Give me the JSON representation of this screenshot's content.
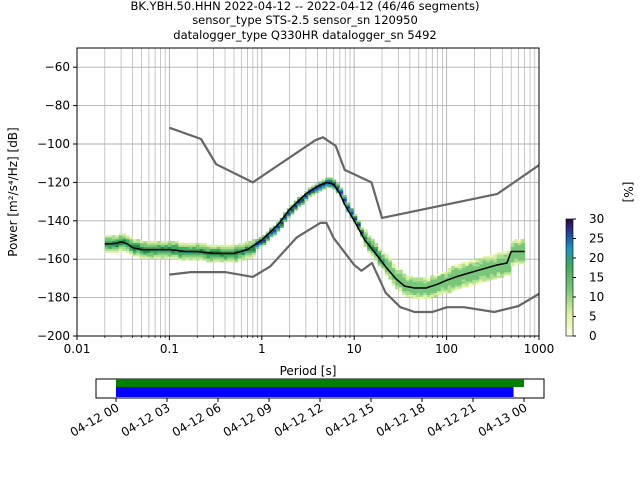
{
  "header": {
    "line1": "BK.YBH.50.HHN   2022-04-12 -- 2022-04-12  (46/46 segments)",
    "line2": "sensor_type STS-2.5 sensor_sn 120950",
    "line3": "datalogger_type Q330HR datalogger_sn 5492"
  },
  "chart_data": {
    "type": "heatmap",
    "xlabel": "Period [s]",
    "ylabel": "Power [m²/s⁴/Hz] [dB]",
    "x_scale": "log",
    "xlim": [
      0.01,
      1000
    ],
    "ylim": [
      -200,
      -50
    ],
    "x_ticks": [
      {
        "value": 0.01,
        "label": "0.01"
      },
      {
        "value": 0.1,
        "label": "0.1"
      },
      {
        "value": 1,
        "label": "1"
      },
      {
        "value": 10,
        "label": "10"
      },
      {
        "value": 100,
        "label": "100"
      },
      {
        "value": 1000,
        "label": "1000"
      }
    ],
    "y_ticks": [
      {
        "value": -60,
        "label": "−60"
      },
      {
        "value": -80,
        "label": "−80"
      },
      {
        "value": -100,
        "label": "−100"
      },
      {
        "value": -120,
        "label": "−120"
      },
      {
        "value": -140,
        "label": "−140"
      },
      {
        "value": -160,
        "label": "−160"
      },
      {
        "value": -180,
        "label": "−180"
      },
      {
        "value": -200,
        "label": "−200"
      }
    ],
    "grid": true,
    "colorbar": {
      "label": "[%]",
      "range": [
        0,
        30
      ],
      "ticks": [
        {
          "value": 0,
          "label": "0"
        },
        {
          "value": 5,
          "label": "5"
        },
        {
          "value": 10,
          "label": "10"
        },
        {
          "value": 15,
          "label": "15"
        },
        {
          "value": 20,
          "label": "20"
        },
        {
          "value": 25,
          "label": "25"
        },
        {
          "value": 30,
          "label": "30"
        }
      ]
    },
    "mean_curve": [
      [
        0.02,
        -152
      ],
      [
        0.025,
        -152
      ],
      [
        0.03,
        -151
      ],
      [
        0.035,
        -152
      ],
      [
        0.04,
        -154
      ],
      [
        0.05,
        -155
      ],
      [
        0.07,
        -155
      ],
      [
        0.1,
        -155
      ],
      [
        0.15,
        -156
      ],
      [
        0.2,
        -156
      ],
      [
        0.3,
        -157
      ],
      [
        0.5,
        -157
      ],
      [
        0.7,
        -155
      ],
      [
        1.0,
        -150
      ],
      [
        1.5,
        -142
      ],
      [
        2.0,
        -134
      ],
      [
        3.0,
        -126
      ],
      [
        4.0,
        -122
      ],
      [
        5.0,
        -120
      ],
      [
        6.0,
        -121
      ],
      [
        7.0,
        -126
      ],
      [
        8.0,
        -132
      ],
      [
        10.0,
        -140
      ],
      [
        13.0,
        -150
      ],
      [
        17.0,
        -157
      ],
      [
        22.0,
        -164
      ],
      [
        28.0,
        -170
      ],
      [
        35.0,
        -174
      ],
      [
        45.0,
        -175
      ],
      [
        60.0,
        -175
      ],
      [
        80.0,
        -173
      ],
      [
        100.0,
        -171
      ],
      [
        130.0,
        -169
      ],
      [
        180.0,
        -167
      ],
      [
        250.0,
        -165
      ],
      [
        350.0,
        -163
      ],
      [
        450.0,
        -162
      ],
      [
        500.0,
        -156
      ],
      [
        700.0,
        -156
      ]
    ],
    "heat_bands": [
      {
        "x_range": [
          0.02,
          0.8
        ],
        "y_range": [
          -162,
          -148
        ],
        "pct": 8
      },
      {
        "x_range": [
          0.8,
          20
        ],
        "y_range": [
          -160,
          -118
        ],
        "pct": 12
      },
      {
        "x_range": [
          20,
          100
        ],
        "y_range": [
          -178,
          -160
        ],
        "pct": 6
      },
      {
        "x_range": [
          100,
          700
        ],
        "y_range": [
          -172,
          -150
        ],
        "pct": 5
      }
    ],
    "nhnm": [
      [
        0.1,
        -91.5
      ],
      [
        0.22,
        -97.4
      ],
      [
        0.32,
        -110.5
      ],
      [
        0.8,
        -120
      ],
      [
        3.8,
        -98
      ],
      [
        4.6,
        -96.5
      ],
      [
        6.3,
        -101
      ],
      [
        7.9,
        -113.5
      ],
      [
        15.4,
        -120
      ],
      [
        20.0,
        -138.5
      ],
      [
        354.8,
        -126
      ],
      [
        1000,
        -111
      ]
    ],
    "nlnm": [
      [
        0.1,
        -168
      ],
      [
        0.17,
        -166.7
      ],
      [
        0.4,
        -166.7
      ],
      [
        0.8,
        -169.2
      ],
      [
        1.24,
        -163.7
      ],
      [
        2.4,
        -148.6
      ],
      [
        4.3,
        -141.1
      ],
      [
        5.0,
        -141.1
      ],
      [
        6.0,
        -149
      ],
      [
        10.0,
        -163
      ],
      [
        12.0,
        -166
      ],
      [
        15.6,
        -162
      ],
      [
        21.9,
        -177.5
      ],
      [
        31.6,
        -185
      ],
      [
        45.0,
        -187.5
      ],
      [
        70.0,
        -187.5
      ],
      [
        101,
        -185
      ],
      [
        154,
        -185
      ],
      [
        328,
        -187.5
      ],
      [
        600,
        -184.4
      ],
      [
        1000,
        -178
      ]
    ]
  },
  "timeline": {
    "start": "2022-04-12 00:00",
    "end": "2022-04-13 00:00",
    "bar_coverage": [
      0.0,
      0.95
    ],
    "green_coverage": [
      0.0,
      0.975
    ],
    "tick_labels": [
      "04-12 00",
      "04-12 03",
      "04-12 06",
      "04-12 09",
      "04-12 12",
      "04-12 15",
      "04-12 18",
      "04-12 21",
      "04-13 00"
    ],
    "colors": {
      "green": "#008000",
      "blue": "#0000ff"
    }
  },
  "colors": {
    "model_curves": "#666666",
    "mean_curve": "#000000",
    "grid": "#b0b0b0"
  }
}
